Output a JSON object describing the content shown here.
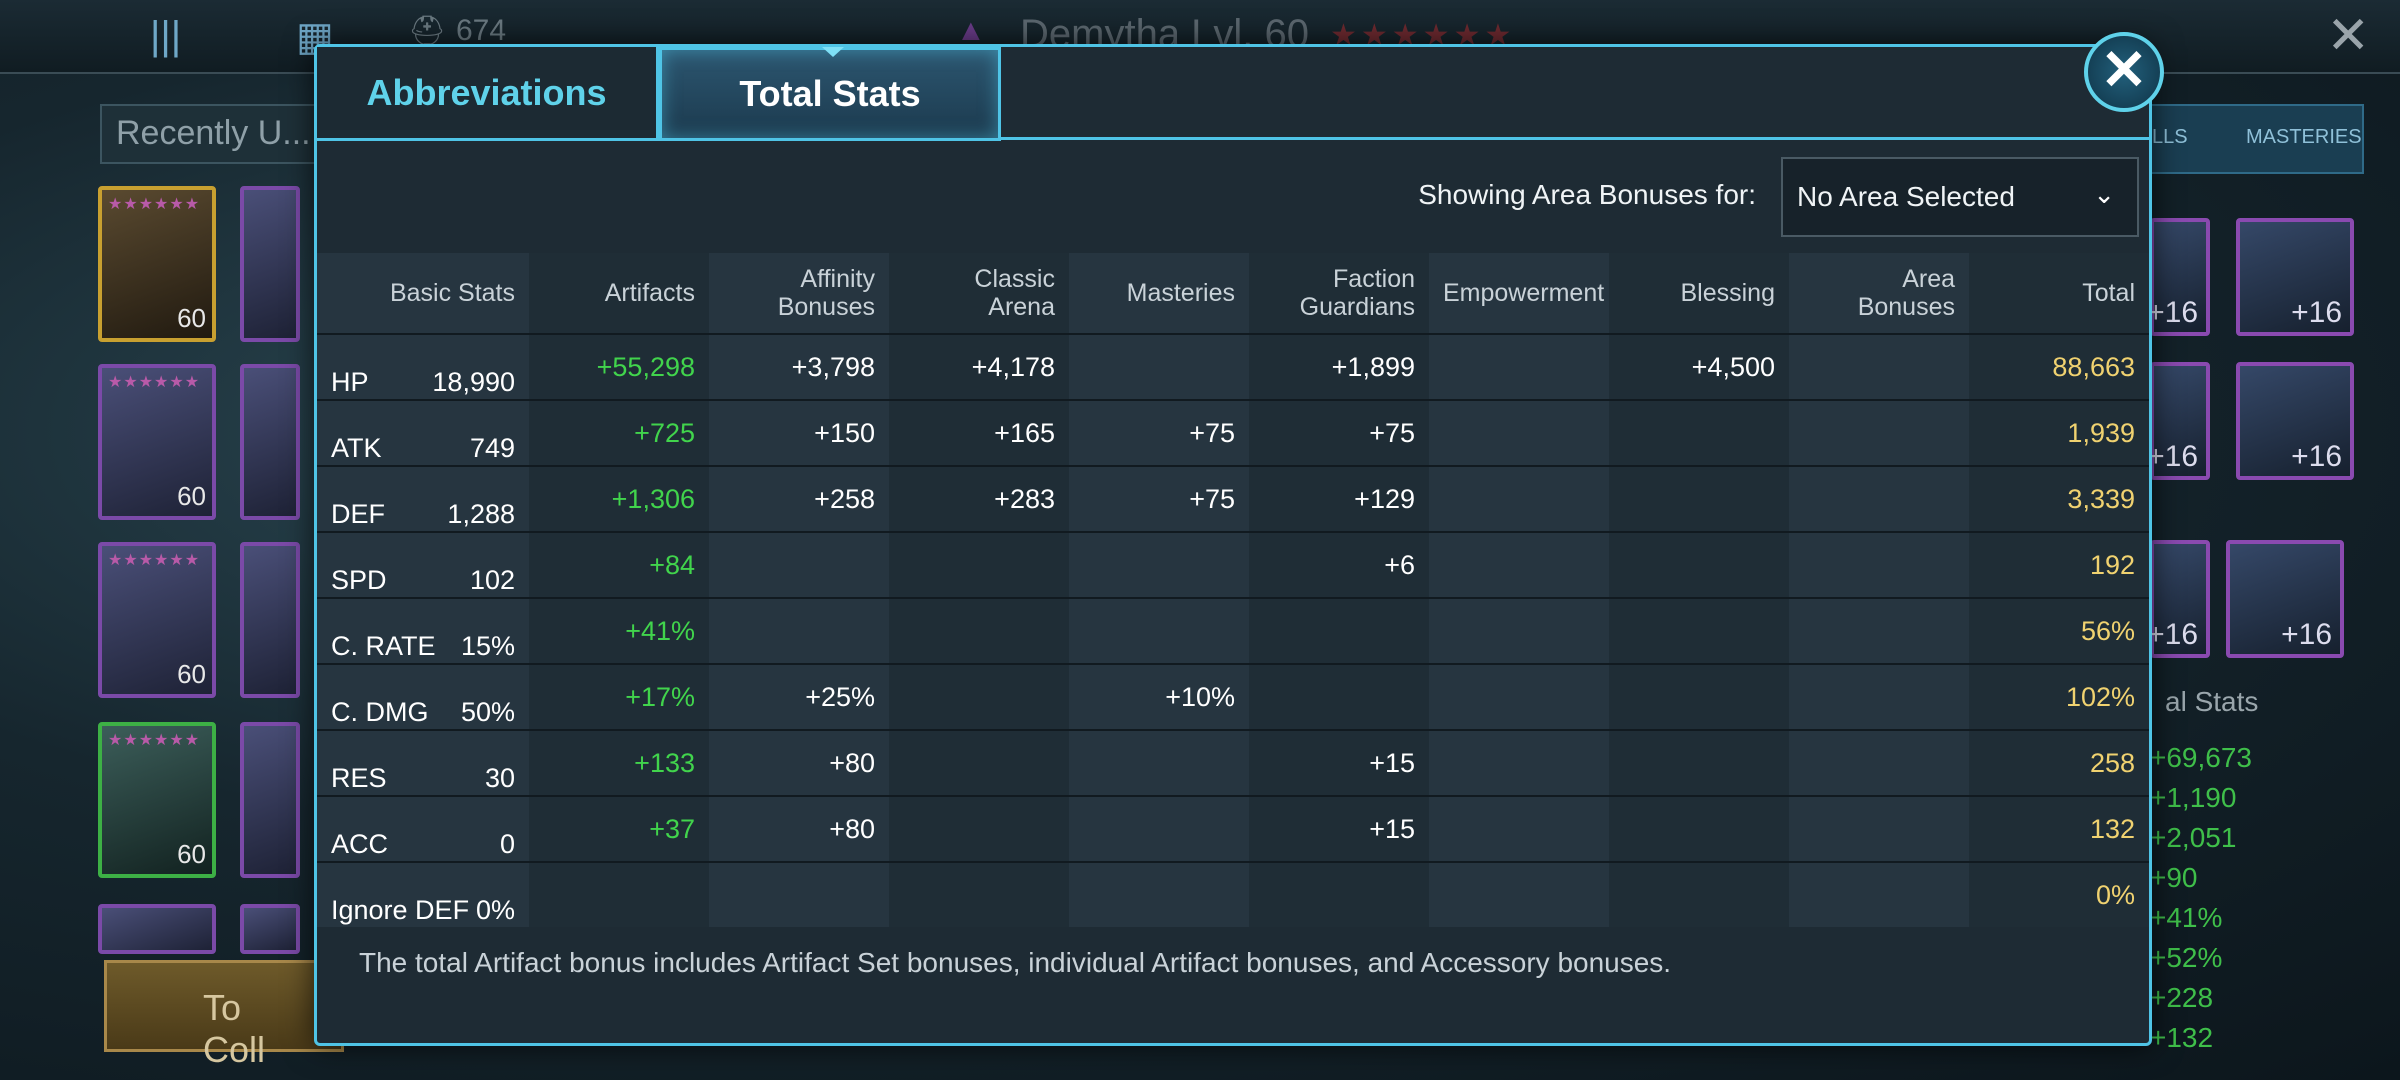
{
  "background": {
    "player_power": "674",
    "hero_title": "Demytha Lvl. 60",
    "stars": "★★★★★★",
    "recent_label": "Recently U...",
    "hero_levels": [
      "60",
      "60",
      "60",
      "60"
    ],
    "to_collection_label": "To Coll",
    "right_tabs": [
      "LLS",
      "MASTERIES"
    ],
    "gear_levels": [
      "+16",
      "+16",
      "+16",
      "+16",
      "+16",
      "+16"
    ],
    "right_stats_title": "al Stats",
    "right_stats": [
      "+69,673",
      "+1,190",
      "+2,051",
      "+90",
      "+41%",
      "+52%",
      "+228",
      "+132"
    ]
  },
  "modal": {
    "tabs": [
      {
        "label": "Abbreviations",
        "active": false
      },
      {
        "label": "Total Stats",
        "active": true
      }
    ],
    "close_symbol": "✕",
    "area_label": "Showing Area Bonuses for:",
    "area_selected": "No Area Selected",
    "columns": [
      "Basic Stats",
      "Artifacts",
      "Affinity Bonuses",
      "Classic Arena",
      "Masteries",
      "Faction Guardians",
      "Empowerment",
      "Blessing",
      "Area Bonuses",
      "Total"
    ],
    "rows": [
      {
        "stat": "HP",
        "base": "18,990",
        "artifacts": "+55,298",
        "affinity": "+3,798",
        "arena": "+4,178",
        "masteries": "",
        "faction": "+1,899",
        "empowerment": "",
        "blessing": "+4,500",
        "area": "",
        "total": "88,663"
      },
      {
        "stat": "ATK",
        "base": "749",
        "artifacts": "+725",
        "affinity": "+150",
        "arena": "+165",
        "masteries": "+75",
        "faction": "+75",
        "empowerment": "",
        "blessing": "",
        "area": "",
        "total": "1,939"
      },
      {
        "stat": "DEF",
        "base": "1,288",
        "artifacts": "+1,306",
        "affinity": "+258",
        "arena": "+283",
        "masteries": "+75",
        "faction": "+129",
        "empowerment": "",
        "blessing": "",
        "area": "",
        "total": "3,339"
      },
      {
        "stat": "SPD",
        "base": "102",
        "artifacts": "+84",
        "affinity": "",
        "arena": "",
        "masteries": "",
        "faction": "+6",
        "empowerment": "",
        "blessing": "",
        "area": "",
        "total": "192"
      },
      {
        "stat": "C. RATE",
        "base": "15%",
        "artifacts": "+41%",
        "affinity": "",
        "arena": "",
        "masteries": "",
        "faction": "",
        "empowerment": "",
        "blessing": "",
        "area": "",
        "total": "56%"
      },
      {
        "stat": "C. DMG",
        "base": "50%",
        "artifacts": "+17%",
        "affinity": "+25%",
        "arena": "",
        "masteries": "+10%",
        "faction": "",
        "empowerment": "",
        "blessing": "",
        "area": "",
        "total": "102%"
      },
      {
        "stat": "RES",
        "base": "30",
        "artifacts": "+133",
        "affinity": "+80",
        "arena": "",
        "masteries": "",
        "faction": "+15",
        "empowerment": "",
        "blessing": "",
        "area": "",
        "total": "258"
      },
      {
        "stat": "ACC",
        "base": "0",
        "artifacts": "+37",
        "affinity": "+80",
        "arena": "",
        "masteries": "",
        "faction": "+15",
        "empowerment": "",
        "blessing": "",
        "area": "",
        "total": "132"
      },
      {
        "stat": "Ignore DEF",
        "base": "0%",
        "artifacts": "",
        "affinity": "",
        "arena": "",
        "masteries": "",
        "faction": "",
        "empowerment": "",
        "blessing": "",
        "area": "",
        "total": "0%"
      }
    ],
    "footnote": "The total Artifact bonus includes Artifact Set bonuses, individual Artifact bonuses, and Accessory bonuses."
  },
  "colors": {
    "accent": "#4fc4e6",
    "artifact_green": "#41d44c",
    "total_gold": "#f0d270"
  }
}
